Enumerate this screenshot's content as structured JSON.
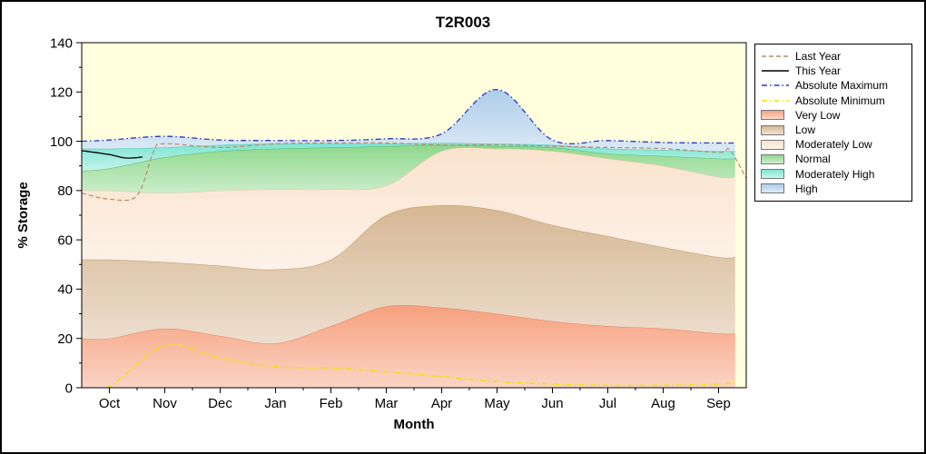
{
  "chart_data": {
    "type": "area",
    "title": "T2R003",
    "xlabel": "Month",
    "ylabel": "% Storage",
    "ylim": [
      0,
      140
    ],
    "yticks": [
      0,
      20,
      40,
      60,
      80,
      100,
      120,
      140
    ],
    "y_minor_step": 10,
    "categories": [
      "Oct",
      "Nov",
      "Dec",
      "Jan",
      "Feb",
      "Mar",
      "Apr",
      "May",
      "Jun",
      "Jul",
      "Aug",
      "Sep"
    ],
    "plot_bg": "#ffffdd",
    "band_x": [
      -0.5,
      0,
      1,
      2,
      3,
      4,
      5,
      6,
      7,
      8,
      9,
      10,
      11,
      11.3
    ],
    "bands": [
      {
        "name": "Very Low",
        "color": "#f6a07e",
        "edge": "#e07b52",
        "top": [
          20,
          20,
          24,
          21,
          18,
          25,
          33,
          32.5,
          30,
          27,
          25,
          24,
          22,
          22
        ]
      },
      {
        "name": "Low",
        "color": "#d6b794",
        "edge": "#b98e57",
        "top": [
          52,
          52,
          51,
          49.5,
          48,
          52,
          70,
          74,
          72,
          66,
          61.5,
          57,
          53,
          53
        ]
      },
      {
        "name": "Moderately Low",
        "color": "#fae3cd",
        "edge": "#e0bd97",
        "top": [
          80,
          80,
          79,
          80,
          80.5,
          80.5,
          82,
          96,
          97,
          96,
          93,
          90,
          85.5,
          85.5
        ]
      },
      {
        "name": "Normal",
        "color": "#8ed88c",
        "edge": "#4fae62",
        "top": [
          88,
          89,
          93.5,
          96,
          97,
          97.5,
          98,
          98.5,
          98,
          97.5,
          95,
          94,
          93,
          93
        ]
      },
      {
        "name": "Moderately High",
        "color": "#7de5d1",
        "edge": "#35bdaf",
        "top": [
          97,
          97,
          97.5,
          98.5,
          99,
          99,
          99,
          99.3,
          99,
          98.5,
          97,
          96.5,
          96,
          96
        ]
      },
      {
        "name": "High",
        "color": "#aecdea",
        "edge": "none",
        "top": [
          100,
          100.5,
          102,
          100.5,
          100.3,
          100.3,
          101,
          103,
          121,
          100.5,
          100.3,
          99.5,
          99.3,
          99.3
        ]
      }
    ],
    "lines": [
      {
        "name": "Absolute Minimum",
        "color": "#f2e400",
        "dash": "dashdot",
        "width": 1.6,
        "x": [
          -0.5,
          0,
          1,
          2,
          3,
          4,
          5,
          6,
          7,
          8,
          9,
          10,
          11,
          11.3
        ],
        "y": [
          0,
          0.5,
          17,
          12,
          8.5,
          8,
          6.5,
          4.5,
          2.5,
          1.5,
          1,
          1,
          1.5,
          2
        ]
      },
      {
        "name": "Last Year",
        "color": "#bc8a5f",
        "dash": "dash",
        "width": 1.2,
        "x": [
          -0.5,
          0,
          0.5,
          0.8,
          1,
          2,
          3,
          4,
          5,
          6,
          7,
          8,
          9,
          10,
          11,
          11.2,
          11.5
        ],
        "y": [
          79,
          76.5,
          78,
          96,
          99,
          97.5,
          99,
          99.3,
          99.3,
          98.5,
          98.5,
          98,
          97.5,
          97,
          95.5,
          96.5,
          85
        ]
      },
      {
        "name": "This Year",
        "color": "#000000",
        "dash": "solid",
        "width": 1.3,
        "x": [
          -0.5,
          0,
          0.3,
          0.6
        ],
        "y": [
          96.2,
          94.6,
          93.2,
          93.6
        ]
      },
      {
        "name": "Absolute Maximum",
        "color": "#2a35cc",
        "dash": "dashdot",
        "width": 1.3,
        "x": [
          -0.5,
          0,
          1,
          2,
          3,
          4,
          5,
          6,
          7,
          8,
          9,
          10,
          11,
          11.3
        ],
        "y": [
          100,
          100.5,
          102,
          100.5,
          100.3,
          100.3,
          101,
          103,
          121,
          100.5,
          100.3,
          99.5,
          99.3,
          99.3
        ]
      }
    ],
    "legend": [
      {
        "label": "Last Year",
        "sample": "line",
        "dash": "dash",
        "color": "#bc8a5f"
      },
      {
        "label": "This Year",
        "sample": "line",
        "dash": "solid",
        "color": "#000000"
      },
      {
        "label": "Absolute Maximum",
        "sample": "line",
        "dash": "dashdot",
        "color": "#2a35cc"
      },
      {
        "label": "Absolute Minimum",
        "sample": "line",
        "dash": "dashdot",
        "color": "#f2e400"
      },
      {
        "label": "Very Low",
        "sample": "box",
        "color": "#f6a07e"
      },
      {
        "label": "Low",
        "sample": "box",
        "color": "#d6b794"
      },
      {
        "label": "Moderately Low",
        "sample": "box",
        "color": "#fae3cd"
      },
      {
        "label": "Normal",
        "sample": "box",
        "color": "#8ed88c"
      },
      {
        "label": "Moderately High",
        "sample": "box",
        "color": "#7de5d1"
      },
      {
        "label": "High",
        "sample": "box",
        "color": "#aecdea"
      }
    ]
  }
}
